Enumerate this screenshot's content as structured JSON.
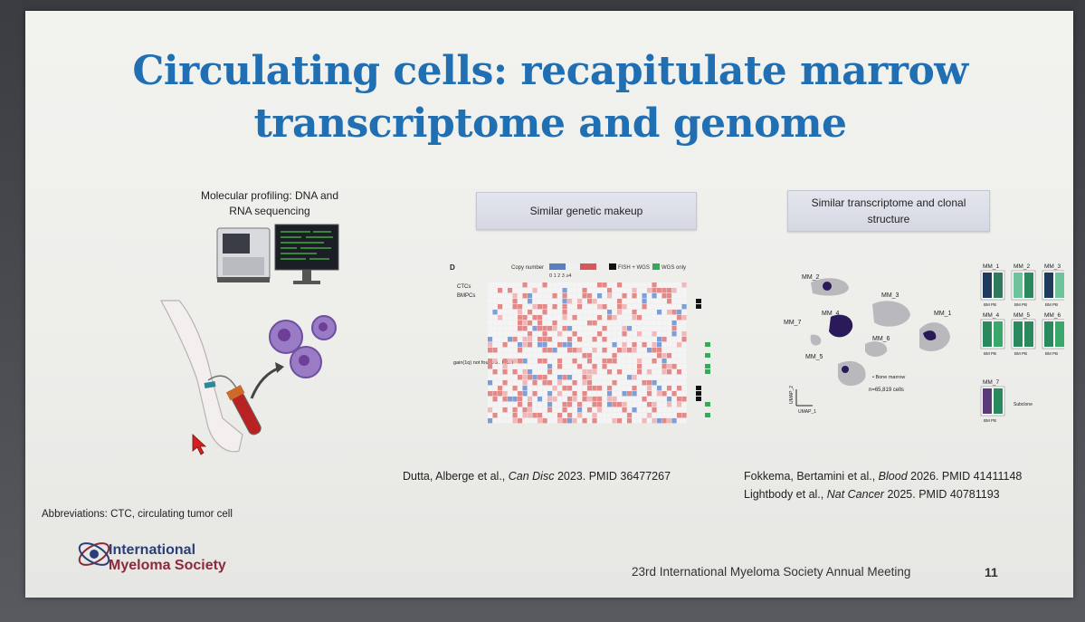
{
  "slide": {
    "title_line1": "Circulating cells: recapitulate marrow",
    "title_line2": "transcriptome and genome",
    "left_panel": {
      "caption_line1": "Molecular profiling: DNA and",
      "caption_line2": "RNA sequencing"
    },
    "middle_panel": {
      "header": "Similar genetic makeup",
      "figure_letter": "D",
      "legend_copy_number": "Copy number",
      "legend_fish_wgs": "FISH + WGS",
      "legend_wgs_only": "WGS only",
      "legend_scale": "0 1 2 3 ≥4",
      "row_labels_top": [
        "CTCs",
        "BMPCs"
      ],
      "annotation": "gain(1q) not found by FISH",
      "citation_authors": "Dutta, Alberge et al., ",
      "citation_journal": "Can Disc",
      "citation_rest": " 2023. PMID 36477267"
    },
    "right_panel": {
      "header_line1": "Similar transcriptome and clonal",
      "header_line2": "structure",
      "umap_labels": [
        "MM_2",
        "MM_3",
        "MM_7",
        "MM_4",
        "MM_1",
        "MM_6",
        "MM_5"
      ],
      "umap_legend": "• Bone marrow",
      "umap_count": "n=65,819 cells",
      "axis_x": "UMAP_1",
      "axis_y": "UMAP_2",
      "bar_labels": [
        "MM_1",
        "MM_2",
        "MM_3",
        "MM_4",
        "MM_5",
        "MM_6",
        "MM_7"
      ],
      "bar_tick": "BM PB",
      "subclone_label": "Subclone",
      "citation1_authors": "Fokkema, Bertamini et al., ",
      "citation1_journal": "Blood",
      "citation1_rest": " 2026. PMID 41411148",
      "citation2_authors": "Lightbody et al., ",
      "citation2_journal": "Nat Cancer",
      "citation2_rest": " 2025. PMID 40781193"
    },
    "abbreviations": "Abbreviations: CTC, circulating tumor cell",
    "logo_line1": "International",
    "logo_line2": "Myeloma Society",
    "footer": "23rd International Myeloma Society Annual Meeting",
    "page_number": "11",
    "colors": {
      "title": "#1f6fb2",
      "logo_blue": "#2a3f7a",
      "logo_red": "#8a2a3a"
    }
  }
}
